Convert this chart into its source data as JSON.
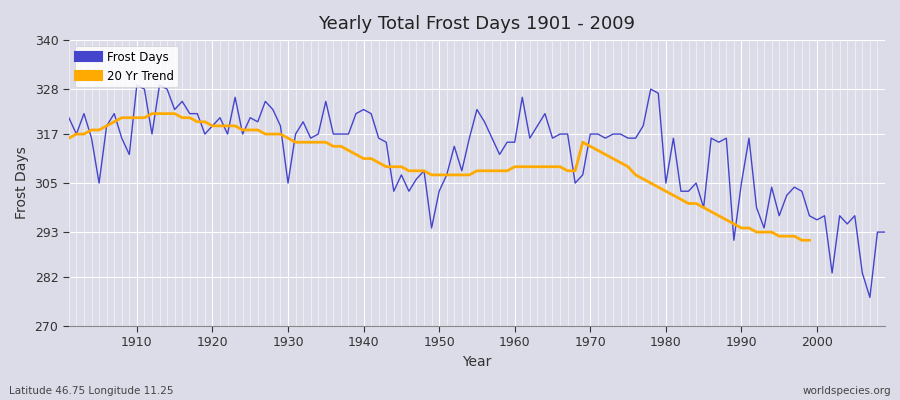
{
  "title": "Yearly Total Frost Days 1901 - 2009",
  "xlabel": "Year",
  "ylabel": "Frost Days",
  "footnote_left": "Latitude 46.75 Longitude 11.25",
  "footnote_right": "worldspecies.org",
  "legend_entries": [
    "Frost Days",
    "20 Yr Trend"
  ],
  "line_color": "#4444cc",
  "trend_color": "#ffaa00",
  "bg_color": "#dcdce8",
  "grid_color": "#ffffff",
  "ylim": [
    270,
    340
  ],
  "xlim": [
    1901,
    2009
  ],
  "yticks": [
    270,
    282,
    293,
    305,
    317,
    328,
    340
  ],
  "xticks": [
    1910,
    1920,
    1930,
    1940,
    1950,
    1960,
    1970,
    1980,
    1990,
    2000
  ],
  "years": [
    1901,
    1902,
    1903,
    1904,
    1905,
    1906,
    1907,
    1908,
    1909,
    1910,
    1911,
    1912,
    1913,
    1914,
    1915,
    1916,
    1917,
    1918,
    1919,
    1920,
    1921,
    1922,
    1923,
    1924,
    1925,
    1926,
    1927,
    1928,
    1929,
    1930,
    1931,
    1932,
    1933,
    1934,
    1935,
    1936,
    1937,
    1938,
    1939,
    1940,
    1941,
    1942,
    1943,
    1944,
    1945,
    1946,
    1947,
    1948,
    1949,
    1950,
    1951,
    1952,
    1953,
    1954,
    1955,
    1956,
    1957,
    1958,
    1959,
    1960,
    1961,
    1962,
    1963,
    1964,
    1965,
    1966,
    1967,
    1968,
    1969,
    1970,
    1971,
    1972,
    1973,
    1974,
    1975,
    1976,
    1977,
    1978,
    1979,
    1980,
    1981,
    1982,
    1983,
    1984,
    1985,
    1986,
    1987,
    1988,
    1989,
    1990,
    1991,
    1992,
    1993,
    1994,
    1995,
    1996,
    1997,
    1998,
    1999,
    2000,
    2001,
    2002,
    2003,
    2004,
    2005,
    2006,
    2007,
    2008,
    2009
  ],
  "frost_days": [
    321,
    317,
    322,
    316,
    305,
    319,
    322,
    316,
    312,
    329,
    328,
    317,
    329,
    328,
    323,
    325,
    322,
    322,
    317,
    319,
    321,
    317,
    326,
    317,
    321,
    320,
    325,
    323,
    319,
    305,
    317,
    320,
    316,
    317,
    325,
    317,
    317,
    317,
    322,
    323,
    322,
    316,
    315,
    303,
    307,
    303,
    306,
    308,
    294,
    303,
    307,
    314,
    308,
    316,
    323,
    320,
    316,
    312,
    315,
    315,
    326,
    316,
    319,
    322,
    316,
    317,
    317,
    305,
    307,
    317,
    317,
    316,
    317,
    317,
    316,
    316,
    319,
    328,
    327,
    305,
    316,
    303,
    303,
    305,
    299,
    316,
    315,
    316,
    291,
    305,
    316,
    299,
    294,
    304,
    297,
    302,
    304,
    303,
    297,
    296,
    297,
    283,
    297,
    295,
    297,
    283,
    277,
    293,
    293
  ],
  "trend": [
    316,
    317,
    317,
    318,
    318,
    319,
    320,
    321,
    321,
    321,
    321,
    322,
    322,
    322,
    322,
    321,
    321,
    320,
    320,
    319,
    319,
    319,
    319,
    318,
    318,
    318,
    317,
    317,
    317,
    316,
    315,
    315,
    315,
    315,
    315,
    314,
    314,
    313,
    312,
    311,
    311,
    310,
    309,
    309,
    309,
    308,
    308,
    308,
    307,
    307,
    307,
    307,
    307,
    307,
    308,
    308,
    308,
    308,
    308,
    309,
    309,
    309,
    309,
    309,
    309,
    309,
    308,
    308,
    315,
    314,
    313,
    312,
    311,
    310,
    309,
    307,
    306,
    305,
    304,
    303,
    302,
    301,
    300,
    300,
    299,
    298,
    297,
    296,
    295,
    294,
    294,
    293,
    293,
    293,
    292,
    292,
    292,
    291,
    291
  ]
}
